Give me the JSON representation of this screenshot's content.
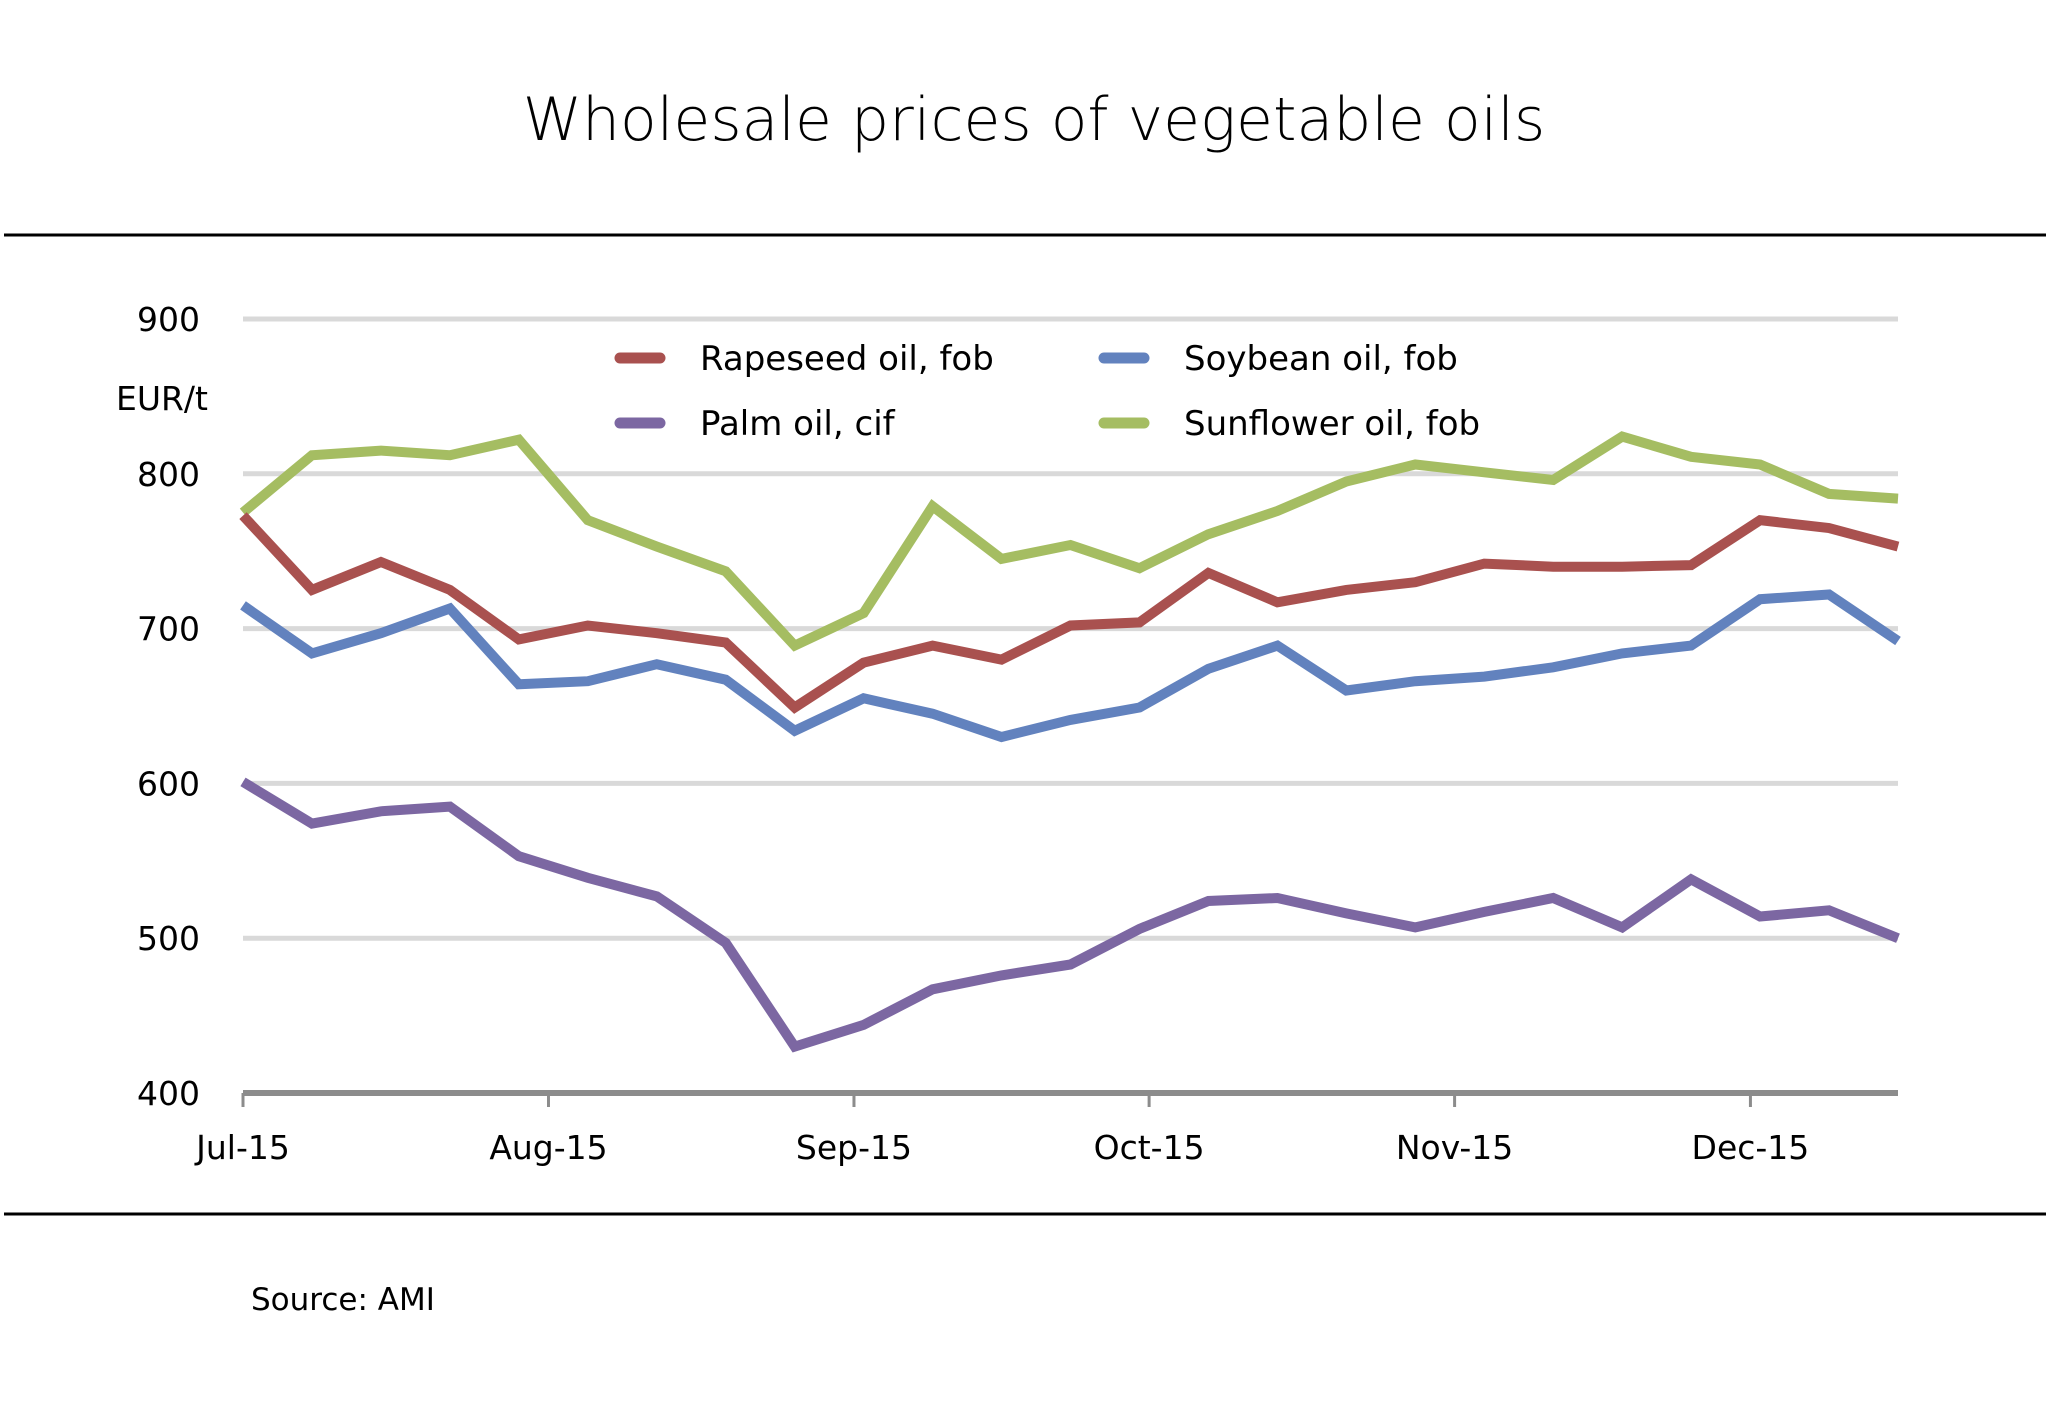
{
  "chart_data": {
    "type": "line",
    "title": "Wholesale prices of vegetable oils",
    "ylabel": "EUR/t",
    "xlabel": "",
    "ylim": [
      400,
      900
    ],
    "yticks": [
      400,
      500,
      600,
      700,
      800,
      900
    ],
    "grid": true,
    "x_points": 25,
    "x_tick_labels": [
      "Jul-15",
      "Aug-15",
      "Sep-15",
      "Oct-15",
      "Nov-15",
      "Dec-15"
    ],
    "x_tick_positions": [
      0,
      4.43,
      8.86,
      13.14,
      17.57,
      21.86
    ],
    "legend_placement": "top-center",
    "series": [
      {
        "name": "Rapeseed oil, fob",
        "color": "#A9514F",
        "values": [
          773,
          725,
          743,
          725,
          693,
          702,
          697,
          691,
          649,
          678,
          689,
          680,
          702,
          704,
          736,
          717,
          725,
          730,
          742,
          740,
          740,
          741,
          770,
          765,
          753
        ]
      },
      {
        "name": "Soybean oil, fob",
        "color": "#6282BE",
        "values": [
          715,
          684,
          697,
          713,
          664,
          666,
          677,
          667,
          634,
          655,
          645,
          630,
          641,
          649,
          674,
          689,
          660,
          666,
          669,
          675,
          684,
          689,
          719,
          722,
          692
        ]
      },
      {
        "name": "Palm oil, cif",
        "color": "#7C67A2",
        "values": [
          601,
          574,
          582,
          585,
          553,
          539,
          527,
          497,
          430,
          444,
          467,
          476,
          483,
          506,
          524,
          526,
          516,
          507,
          517,
          526,
          507,
          538,
          514,
          518,
          500
        ]
      },
      {
        "name": "Sunflower oil, fob",
        "color": "#A5BD62",
        "values": [
          775,
          812,
          815,
          812,
          822,
          770,
          753,
          737,
          689,
          710,
          779,
          745,
          754,
          739,
          761,
          776,
          795,
          806,
          801,
          796,
          824,
          811,
          806,
          787,
          784
        ]
      }
    ],
    "source": "Source: AMI"
  }
}
